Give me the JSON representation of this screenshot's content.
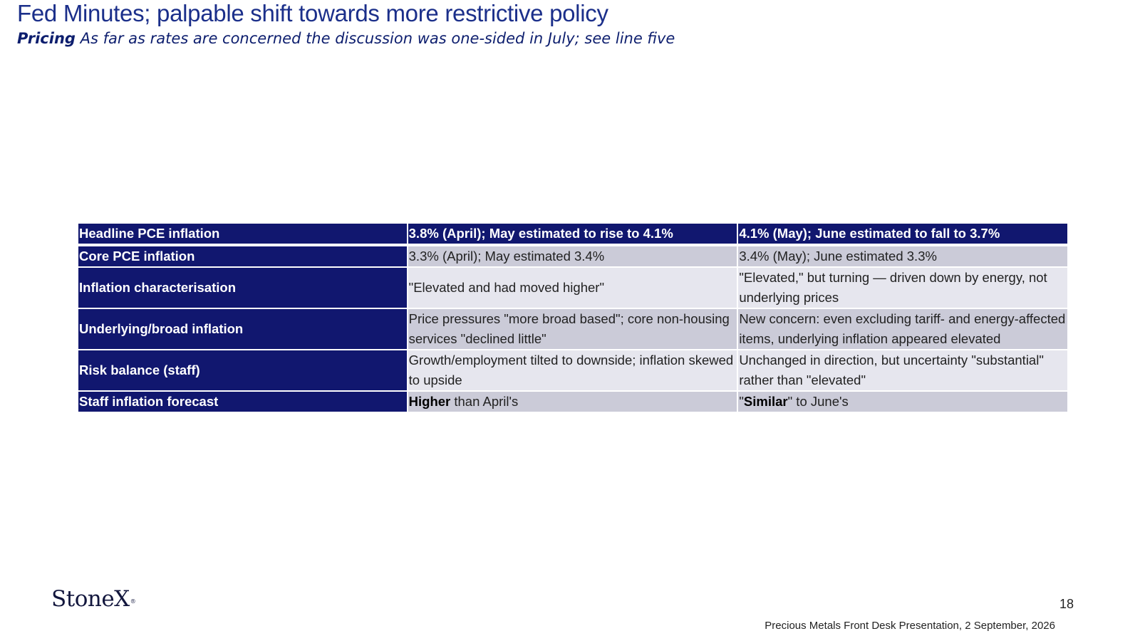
{
  "header": {
    "title": "Fed Minutes; palpable shift towards more restrictive policy",
    "subtitle_lead": "Pricing",
    "subtitle_text": "As far as rates are concerned the discussion was one-sided in July; see line five"
  },
  "table": {
    "header": {
      "label": "Headline PCE inflation",
      "col1": "3.8% (April); May estimated to rise to 4.1%",
      "col2": "4.1% (May); June estimated to fall to 3.7%"
    },
    "rows": [
      {
        "label": "Core PCE inflation",
        "col1": "3.3% (April); May estimated 3.4%",
        "col2": "3.4% (May); June estimated 3.3%"
      },
      {
        "label": "Inflation characterisation",
        "col1": "\"Elevated and had moved higher\"",
        "col2": "\"Elevated,\" but turning — driven down by energy, not underlying prices"
      },
      {
        "label": "Underlying/broad inflation",
        "col1": "Price pressures \"more broad based\"; core non-housing services \"declined little\"",
        "col2": "New concern: even excluding tariff- and energy-affected items, underlying inflation appeared elevated"
      },
      {
        "label": "Risk balance (staff)",
        "col1": "Growth/employment tilted to downside; inflation skewed to upside",
        "col2": "Unchanged in direction, but uncertainty \"substantial\" rather than \"elevated\""
      },
      {
        "label": "Staff inflation forecast",
        "col1_bold": "Higher",
        "col1_rest": " than April's",
        "col2_pre": "\"",
        "col2_bold": "Similar",
        "col2_rest": "\" to June's"
      }
    ]
  },
  "footer": {
    "logo": "StoneX",
    "logo_mark": "®",
    "page_number": "18",
    "caption": "Precious Metals Front Desk Presentation, 2 September, 2026"
  }
}
